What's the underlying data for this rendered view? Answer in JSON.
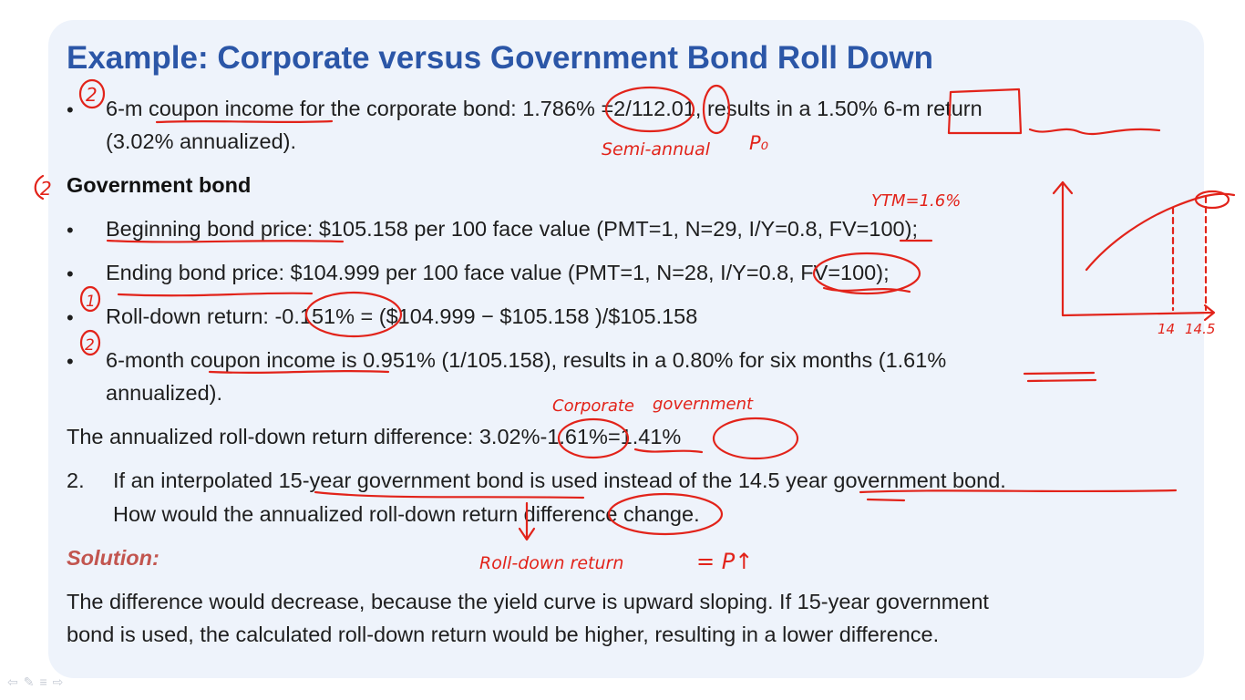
{
  "slide": {
    "title": "Example: Corporate versus Government Bond Roll Down",
    "bullet_char": "•",
    "corp_line1": "6-m coupon income for the corporate bond: 1.786% =2/112.01, results in a 1.50% 6-m return",
    "corp_line2": "(3.02% annualized).",
    "gov_heading": "Government bond",
    "gov_items": [
      "Beginning bond price: $105.158 per 100 face value (PMT=1, N=29, I/Y=0.8, FV=100);",
      "Ending bond price: $104.999 per 100 face value (PMT=1, N=28, I/Y=0.8, FV=100);",
      "Roll-down return: -0.151% = ($104.999 − $105.158 )/$105.158",
      "6-month coupon income is 0.951% (1/105.158), results in a 0.80% for six months (1.61%"
    ],
    "gov_item4_line2": "annualized).",
    "diff_line": "The annualized roll-down return difference: 3.02%-1.61%=1.41%",
    "q2_number": "2.",
    "q2_line1": "If an interpolated 15-year government bond is used instead of the 14.5 year government bond.",
    "q2_line2": "How would the annualized roll-down return difference change.",
    "solution_label": "Solution:",
    "solution_line1": "The difference would decrease, because the yield curve is upward sloping. If 15-year government",
    "solution_line2": "bond is used, the calculated roll-down return would be higher, resulting in a lower difference."
  },
  "annotations": {
    "num_1": "1",
    "num_2": "2",
    "semi_annual": "Semi-annual",
    "p0": "P₀",
    "ytm": "YTM=1.6%",
    "corporate": "Corporate",
    "government": "government",
    "rolldown_note": "Roll-down return",
    "p_up": "= P↑",
    "tick_14": "14",
    "tick_145": "14.5"
  },
  "colors": {
    "title": "#2b56a7",
    "ink": "#e2231a",
    "solution": "#c2554f",
    "slide_bg": "#eef3fb"
  }
}
